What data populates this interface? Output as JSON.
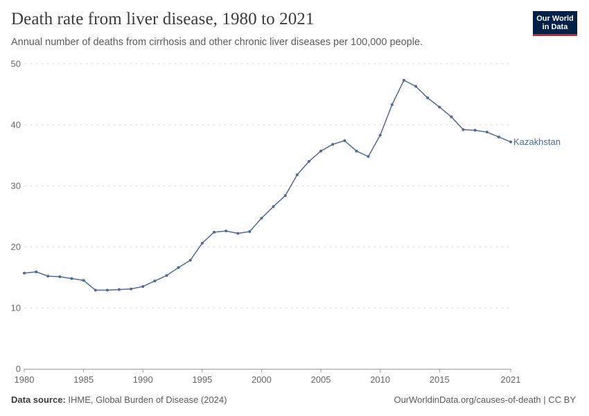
{
  "header": {
    "title": "Death rate from liver disease, 1980 to 2021",
    "subtitle": "Annual number of deaths from cirrhosis and other chronic liver diseases per 100,000 people."
  },
  "logo": {
    "line1": "Our World",
    "line2": "in Data"
  },
  "footer": {
    "source_label": "Data source:",
    "source_text": "IHME, Global Burden of Disease (2024)",
    "url": "OurWorldinData.org/causes-of-death | CC BY"
  },
  "colors": {
    "series": "#4c6a9c",
    "grid": "#dddddd",
    "axis": "#666666"
  },
  "chart_data": {
    "type": "line",
    "title": "Death rate from liver disease, 1980 to 2021",
    "xlabel": "",
    "ylabel": "",
    "xlim": [
      1980,
      2021
    ],
    "ylim": [
      0,
      50
    ],
    "x_ticks": [
      1980,
      1985,
      1990,
      1995,
      2000,
      2005,
      2010,
      2015,
      2021
    ],
    "y_ticks": [
      0,
      10,
      20,
      30,
      40,
      50
    ],
    "grid": true,
    "series": [
      {
        "name": "Kazakhstan",
        "x": [
          1980,
          1981,
          1982,
          1983,
          1984,
          1985,
          1986,
          1987,
          1988,
          1989,
          1990,
          1991,
          1992,
          1993,
          1994,
          1995,
          1996,
          1997,
          1998,
          1999,
          2000,
          2001,
          2002,
          2003,
          2004,
          2005,
          2006,
          2007,
          2008,
          2009,
          2010,
          2011,
          2012,
          2013,
          2014,
          2015,
          2016,
          2017,
          2018,
          2019,
          2020,
          2021
        ],
        "values": [
          15.7,
          15.9,
          15.2,
          15.1,
          14.8,
          14.5,
          12.9,
          12.9,
          13.0,
          13.1,
          13.5,
          14.4,
          15.3,
          16.6,
          17.8,
          20.6,
          22.4,
          22.6,
          22.2,
          22.5,
          24.7,
          26.6,
          28.4,
          31.8,
          34.0,
          35.7,
          36.8,
          37.4,
          35.7,
          34.8,
          38.3,
          43.3,
          47.3,
          46.3,
          44.4,
          42.9,
          41.3,
          39.2,
          39.1,
          38.8,
          38.0,
          37.2
        ]
      }
    ]
  }
}
